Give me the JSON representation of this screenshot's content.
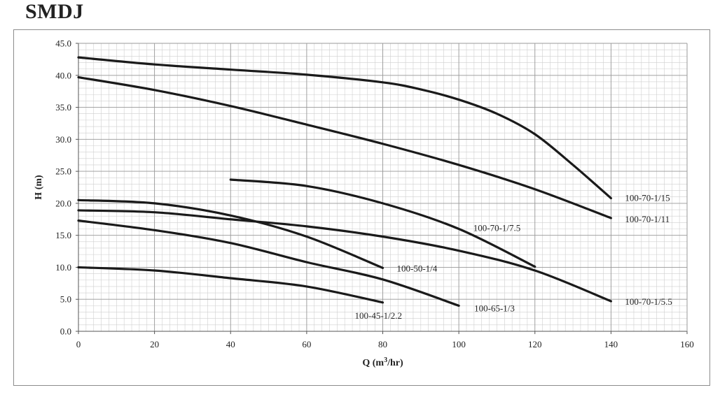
{
  "title": "SMDJ",
  "chart_data": {
    "type": "line",
    "title": "SMDJ",
    "xlabel": "Q (m3/hr)",
    "xlabel_main": "Q (m",
    "xlabel_sup": "3",
    "xlabel_tail": "/hr)",
    "ylabel": "H (m)",
    "xlim": [
      0,
      160
    ],
    "ylim": [
      0,
      45
    ],
    "x_ticks": [
      0,
      20,
      40,
      60,
      80,
      100,
      120,
      140,
      160
    ],
    "y_ticks": [
      0,
      5,
      10,
      15,
      20,
      25,
      30,
      35,
      40,
      45
    ],
    "y_tick_labels": [
      "0.0",
      "5.0",
      "10.0",
      "15.0",
      "20.0",
      "25.0",
      "30.0",
      "35.0",
      "40.0",
      "45.0"
    ],
    "grid": true,
    "line_color": "#1a1a1a",
    "series": [
      {
        "name": "100-70-1/15",
        "x": [
          0,
          20,
          40,
          60,
          80,
          90,
          100,
          110,
          120,
          130,
          140
        ],
        "y": [
          42.8,
          41.7,
          40.9,
          40.1,
          38.9,
          37.8,
          36.2,
          34.0,
          30.8,
          26.0,
          20.8
        ]
      },
      {
        "name": "100-70-1/11",
        "x": [
          0,
          20,
          40,
          60,
          80,
          100,
          120,
          140
        ],
        "y": [
          39.7,
          37.7,
          35.2,
          32.3,
          29.3,
          26.0,
          22.2,
          17.7
        ]
      },
      {
        "name": "100-70-1/7.5",
        "x": [
          40,
          60,
          80,
          100,
          120
        ],
        "y": [
          23.7,
          22.7,
          20.0,
          16.0,
          10.1
        ]
      },
      {
        "name": "100-70-1/5.5",
        "x": [
          0,
          20,
          40,
          60,
          80,
          100,
          120,
          140
        ],
        "y": [
          18.9,
          18.6,
          17.5,
          16.4,
          14.8,
          12.6,
          9.5,
          4.7
        ]
      },
      {
        "name": "100-50-1/4",
        "x": [
          0,
          20,
          40,
          60,
          80
        ],
        "y": [
          20.5,
          20.0,
          18.1,
          14.8,
          9.9
        ]
      },
      {
        "name": "100-65-1/3",
        "x": [
          0,
          20,
          40,
          60,
          80,
          100
        ],
        "y": [
          17.3,
          15.8,
          13.8,
          10.8,
          8.1,
          4.0
        ]
      },
      {
        "name": "100-45-1/2.2",
        "x": [
          0,
          20,
          40,
          60,
          80
        ],
        "y": [
          10.0,
          9.5,
          8.3,
          7.0,
          4.5
        ]
      }
    ]
  }
}
